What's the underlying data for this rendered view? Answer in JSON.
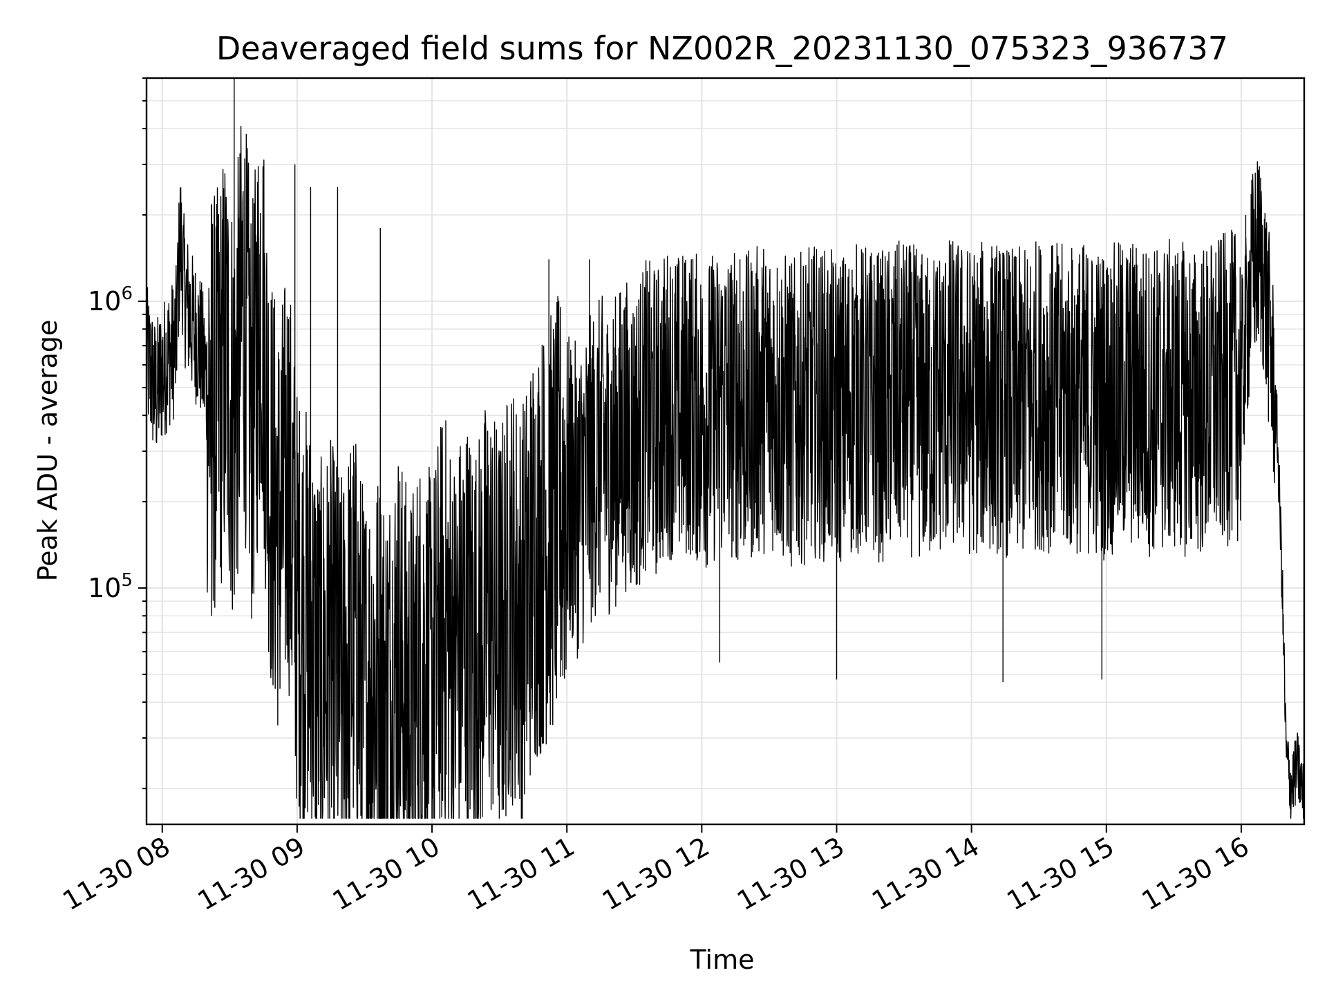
{
  "chart_data": {
    "type": "line",
    "title": "Deaveraged field sums for NZ002R_20231130_075323_936737",
    "xlabel": "Time",
    "ylabel": "Peak ADU - average",
    "yscale": "log",
    "grid": "on (major and minor)",
    "xlim": [
      "2023-11-30 07:53",
      "2023-11-30 16:28"
    ],
    "ylim": [
      15000,
      6000000
    ],
    "x_ticks": [
      "11-30 08",
      "11-30 09",
      "11-30 10",
      "11-30 11",
      "11-30 12",
      "11-30 13",
      "11-30 14",
      "11-30 15",
      "11-30 16"
    ],
    "y_ticks": [
      {
        "base": "10",
        "exp": "5",
        "value": 100000
      },
      {
        "base": "10",
        "exp": "6",
        "value": 1000000
      }
    ],
    "series": [
      {
        "color": "#000000",
        "points": [
          [
            "07:53",
            650000
          ],
          [
            "07:57",
            480000
          ],
          [
            "08:02",
            620000
          ],
          [
            "08:06",
            700000
          ],
          [
            "08:08",
            1700000
          ],
          [
            "08:10",
            1050000
          ],
          [
            "08:13",
            850000
          ],
          [
            "08:17",
            700000
          ],
          [
            "08:20",
            500000
          ],
          [
            "08:24",
            430000
          ],
          [
            "08:28",
            650000
          ],
          [
            "08:32",
            380000
          ],
          [
            "08:36",
            1000000
          ],
          [
            "08:40",
            380000
          ],
          [
            "08:44",
            1100000
          ],
          [
            "08:48",
            250000
          ],
          [
            "08:52",
            160000
          ],
          [
            "08:56",
            260000
          ],
          [
            "09:00",
            90000
          ],
          [
            "09:05",
            75000
          ],
          [
            "09:10",
            50000
          ],
          [
            "09:15",
            60000
          ],
          [
            "09:20",
            45000
          ],
          [
            "09:25",
            70000
          ],
          [
            "09:30",
            40000
          ],
          [
            "09:35",
            50000
          ],
          [
            "09:40",
            40000
          ],
          [
            "09:45",
            60000
          ],
          [
            "09:50",
            38000
          ],
          [
            "09:55",
            55000
          ],
          [
            "10:00",
            45000
          ],
          [
            "10:05",
            80000
          ],
          [
            "10:10",
            55000
          ],
          [
            "10:15",
            75000
          ],
          [
            "10:20",
            60000
          ],
          [
            "10:25",
            90000
          ],
          [
            "10:30",
            65000
          ],
          [
            "10:35",
            100000
          ],
          [
            "10:40",
            80000
          ],
          [
            "10:45",
            130000
          ],
          [
            "10:50",
            150000
          ],
          [
            "10:55",
            180000
          ],
          [
            "11:00",
            220000
          ],
          [
            "11:05",
            200000
          ],
          [
            "11:10",
            250000
          ],
          [
            "11:15",
            300000
          ],
          [
            "11:20",
            280000
          ],
          [
            "11:25",
            350000
          ],
          [
            "11:30",
            320000
          ],
          [
            "11:35",
            400000
          ],
          [
            "11:40",
            380000
          ],
          [
            "11:45",
            450000
          ],
          [
            "11:50",
            420000
          ],
          [
            "11:55",
            450000
          ],
          [
            "12:00",
            400000
          ],
          [
            "12:10",
            450000
          ],
          [
            "12:20",
            420000
          ],
          [
            "12:30",
            480000
          ],
          [
            "12:40",
            400000
          ],
          [
            "12:50",
            450000
          ],
          [
            "13:00",
            420000
          ],
          [
            "13:10",
            460000
          ],
          [
            "13:20",
            430000
          ],
          [
            "13:30",
            470000
          ],
          [
            "13:40",
            420000
          ],
          [
            "13:50",
            480000
          ],
          [
            "14:00",
            450000
          ],
          [
            "14:10",
            470000
          ],
          [
            "14:20",
            430000
          ],
          [
            "14:30",
            480000
          ],
          [
            "14:40",
            450000
          ],
          [
            "14:50",
            460000
          ],
          [
            "15:00",
            440000
          ],
          [
            "15:10",
            480000
          ],
          [
            "15:20",
            450000
          ],
          [
            "15:30",
            470000
          ],
          [
            "15:40",
            440000
          ],
          [
            "15:50",
            480000
          ],
          [
            "16:00",
            520000
          ],
          [
            "16:05",
            1300000
          ],
          [
            "16:08",
            1500000
          ],
          [
            "16:10",
            1200000
          ],
          [
            "16:13",
            700000
          ],
          [
            "16:16",
            350000
          ],
          [
            "16:18",
            120000
          ],
          [
            "16:20",
            26000
          ],
          [
            "16:22",
            20000
          ],
          [
            "16:25",
            24000
          ],
          [
            "16:28",
            18000
          ]
        ],
        "spikes": [
          [
            "08:32",
            6000000
          ],
          [
            "08:45",
            2500000
          ],
          [
            "08:59",
            3000000
          ],
          [
            "09:06",
            2500000
          ],
          [
            "09:18",
            2500000
          ],
          [
            "09:37",
            1800000
          ],
          [
            "10:52",
            1400000
          ],
          [
            "11:10",
            1400000
          ],
          [
            "12:17",
            1400000
          ],
          [
            "16:02",
            2000000
          ]
        ],
        "dips": [
          [
            "08:22",
            80000
          ],
          [
            "09:05",
            23000
          ],
          [
            "09:16",
            24000
          ],
          [
            "10:09",
            25000
          ],
          [
            "12:08",
            55000
          ],
          [
            "13:00",
            48000
          ],
          [
            "14:14",
            47000
          ],
          [
            "14:58",
            48000
          ]
        ]
      }
    ]
  }
}
